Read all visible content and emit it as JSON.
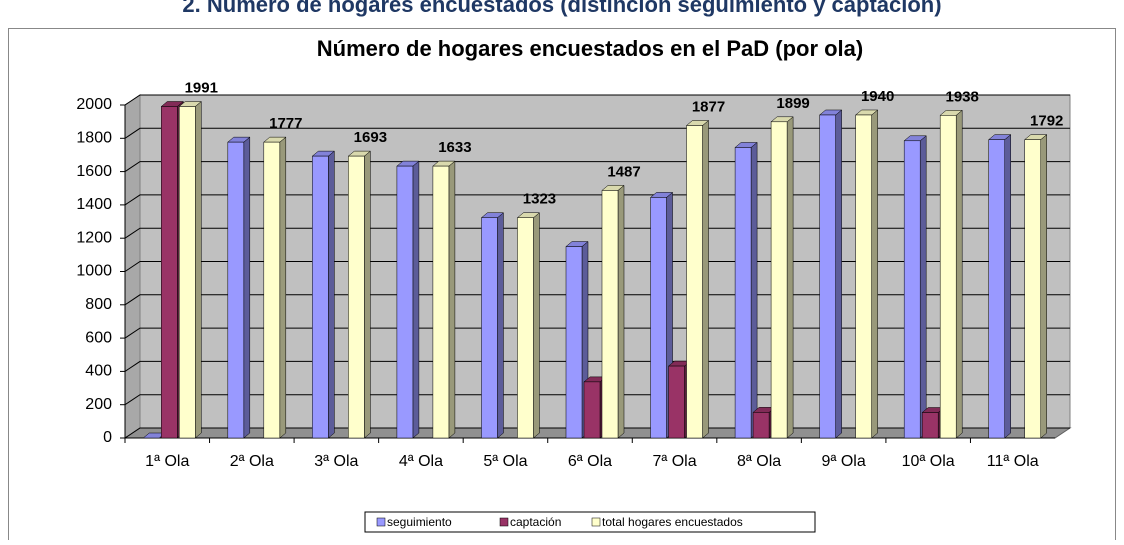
{
  "header": {
    "title": "2. Número de hogares encuestados (distinción seguimiento y captación)"
  },
  "chart_data": {
    "type": "bar3d",
    "title": "Número de hogares encuestados en el PaD (por ola)",
    "categories": [
      "1ª Ola",
      "2ª Ola",
      "3ª Ola",
      "4ª Ola",
      "5ª Ola",
      "6ª Ola",
      "7ª Ola",
      "8ª Ola",
      "9ª Ola",
      "10ª Ola",
      "11ª Ola"
    ],
    "series": [
      {
        "name": "seguimiento",
        "color": "#9999FF",
        "values": [
          0,
          1777,
          1693,
          1633,
          1323,
          1150,
          1445,
          1745,
          1940,
          1785,
          1792
        ]
      },
      {
        "name": "captación",
        "color": "#993366",
        "values": [
          1991,
          null,
          null,
          null,
          null,
          337,
          432,
          154,
          null,
          153,
          null
        ]
      },
      {
        "name": "total hogares encuestados",
        "color": "#FFFFCC",
        "values": [
          1991,
          1777,
          1693,
          1633,
          1323,
          1487,
          1877,
          1899,
          1940,
          1938,
          1792
        ],
        "data_labels": true
      }
    ],
    "ylim": [
      0,
      2000
    ],
    "yticks": [
      0,
      200,
      400,
      600,
      800,
      1000,
      1200,
      1400,
      1600,
      1800,
      2000
    ],
    "grid": true,
    "legend": "bottom"
  }
}
